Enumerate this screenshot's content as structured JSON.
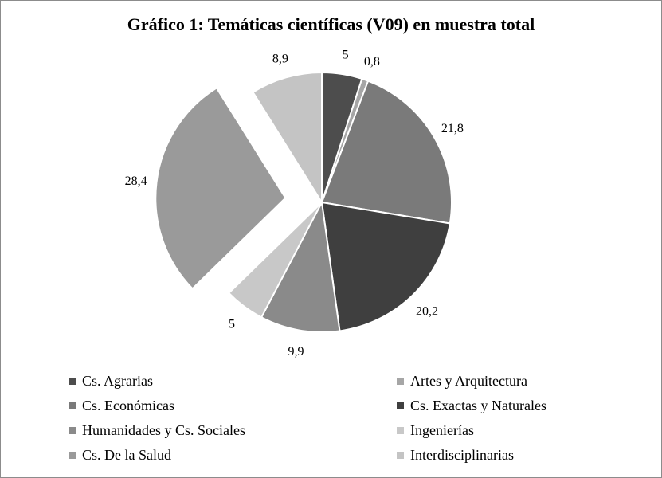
{
  "chart_data": {
    "type": "pie",
    "title": "Gráfico 1: Temáticas científicas (V09) en muestra total",
    "slices": [
      {
        "label": "Cs. Agrarias",
        "value": 5,
        "value_label": "5",
        "color": "#4d4d4d"
      },
      {
        "label": "Artes y Arquitectura",
        "value": 0.8,
        "value_label": "0,8",
        "color": "#a6a6a6"
      },
      {
        "label": "Cs. Económicas",
        "value": 21.8,
        "value_label": "21,8",
        "color": "#7a7a7a"
      },
      {
        "label": "Cs. Exactas y Naturales",
        "value": 20.2,
        "value_label": "20,2",
        "color": "#3f3f3f"
      },
      {
        "label": "Humanidades y Cs. Sociales",
        "value": 9.9,
        "value_label": "9,9",
        "color": "#8a8a8a"
      },
      {
        "label": "Ingenierías",
        "value": 5,
        "value_label": "5",
        "color": "#c8c8c8"
      },
      {
        "label": "Cs. De la Salud",
        "value": 28.4,
        "value_label": "28,4",
        "color": "#9a9a9a",
        "exploded": true
      },
      {
        "label": "Interdisciplinarias",
        "value": 8.9,
        "value_label": "8,9",
        "color": "#c4c4c4"
      }
    ],
    "legend_position": "bottom",
    "legend_order": [
      "Cs. Agrarias",
      "Artes y Arquitectura",
      "Cs. Económicas",
      "Cs. Exactas y Naturales",
      "Humanidades y Cs. Sociales",
      "Ingenierías",
      "Cs. De la Salud",
      "Interdisciplinarias"
    ]
  }
}
